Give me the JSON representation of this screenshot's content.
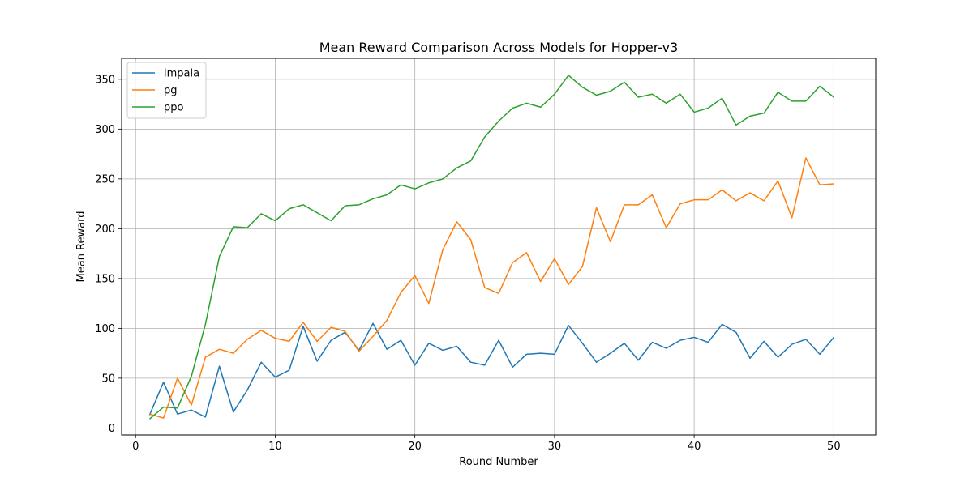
{
  "chart_data": {
    "type": "line",
    "title": "Mean Reward Comparison Across Models for Hopper-v3",
    "xlabel": "Round Number",
    "ylabel": "Mean Reward",
    "xlim": [
      -1,
      53
    ],
    "ylim": [
      -7,
      371
    ],
    "xticks": [
      0,
      10,
      20,
      30,
      40,
      50
    ],
    "yticks": [
      0,
      50,
      100,
      150,
      200,
      250,
      300,
      350
    ],
    "grid": true,
    "legend_position": "top-left",
    "x": [
      1,
      2,
      3,
      4,
      5,
      6,
      7,
      8,
      9,
      10,
      11,
      12,
      13,
      14,
      15,
      16,
      17,
      18,
      19,
      20,
      21,
      22,
      23,
      24,
      25,
      26,
      27,
      28,
      29,
      30,
      31,
      32,
      33,
      34,
      35,
      36,
      37,
      38,
      39,
      40,
      41,
      42,
      43,
      44,
      45,
      46,
      47,
      48,
      49,
      50
    ],
    "series": [
      {
        "name": "impala",
        "color": "#1f77b4",
        "values": [
          13,
          46,
          14,
          18,
          11,
          62,
          16,
          38,
          66,
          51,
          58,
          102,
          67,
          88,
          96,
          78,
          105,
          79,
          88,
          63,
          85,
          78,
          82,
          66,
          63,
          88,
          61,
          74,
          75,
          74,
          103,
          85,
          66,
          75,
          85,
          68,
          86,
          80,
          88,
          91,
          86,
          104,
          96,
          70,
          87,
          71,
          84,
          89,
          74,
          91
        ]
      },
      {
        "name": "pg",
        "color": "#ff7f0e",
        "values": [
          14,
          10,
          50,
          23,
          71,
          79,
          75,
          89,
          98,
          90,
          87,
          106,
          87,
          101,
          97,
          77,
          92,
          108,
          136,
          153,
          125,
          179,
          207,
          189,
          141,
          135,
          166,
          176,
          147,
          170,
          144,
          162,
          221,
          187,
          224,
          224,
          234,
          201,
          225,
          229,
          229,
          239,
          228,
          236,
          228,
          248,
          211,
          271,
          244,
          245
        ]
      },
      {
        "name": "ppo",
        "color": "#2ca02c",
        "values": [
          9,
          21,
          20,
          52,
          104,
          172,
          202,
          201,
          215,
          208,
          220,
          224,
          216,
          208,
          223,
          224,
          230,
          234,
          244,
          240,
          246,
          250,
          261,
          268,
          292,
          308,
          321,
          326,
          322,
          335,
          354,
          342,
          334,
          338,
          347,
          332,
          335,
          326,
          335,
          317,
          321,
          331,
          304,
          313,
          316,
          337,
          328,
          328,
          343,
          332
        ]
      }
    ]
  }
}
